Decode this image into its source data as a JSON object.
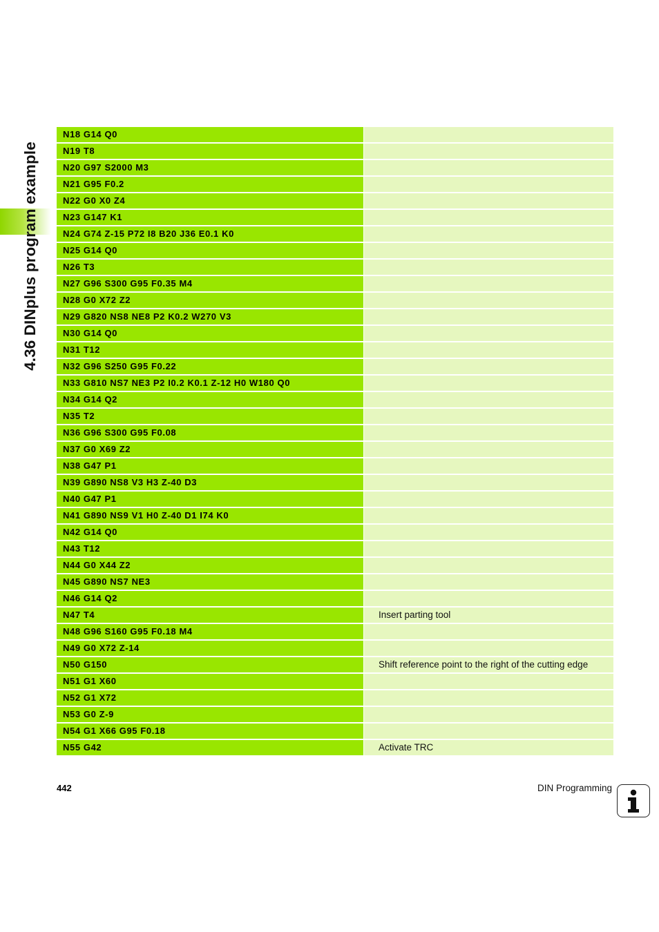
{
  "side_title": "4.36 DINplus program example",
  "footer": {
    "page_number": "442",
    "title": "DIN Programming"
  },
  "icons": {
    "info": "info-icon"
  },
  "colors": {
    "code_cell": "#99e600",
    "comment_cell": "#e6f7bf",
    "side_tab": "#8fd600"
  },
  "rows": [
    {
      "code": "N18 G14 Q0",
      "comment": ""
    },
    {
      "code": "N19 T8",
      "comment": ""
    },
    {
      "code": "N20 G97 S2000 M3",
      "comment": ""
    },
    {
      "code": "N21 G95 F0.2",
      "comment": ""
    },
    {
      "code": "N22 G0 X0 Z4",
      "comment": ""
    },
    {
      "code": "N23 G147 K1",
      "comment": ""
    },
    {
      "code": "N24 G74 Z-15 P72 I8 B20 J36 E0.1 K0",
      "comment": ""
    },
    {
      "code": "N25 G14 Q0",
      "comment": ""
    },
    {
      "code": "N26 T3",
      "comment": ""
    },
    {
      "code": "N27 G96 S300 G95 F0.35 M4",
      "comment": ""
    },
    {
      "code": "N28 G0 X72 Z2",
      "comment": ""
    },
    {
      "code": "N29 G820 NS8 NE8 P2 K0.2 W270 V3",
      "comment": ""
    },
    {
      "code": "N30 G14 Q0",
      "comment": ""
    },
    {
      "code": "N31 T12",
      "comment": ""
    },
    {
      "code": "N32 G96 S250 G95 F0.22",
      "comment": ""
    },
    {
      "code": "N33 G810 NS7 NE3 P2 I0.2 K0.1 Z-12 H0 W180 Q0",
      "comment": ""
    },
    {
      "code": "N34 G14 Q2",
      "comment": ""
    },
    {
      "code": "N35 T2",
      "comment": ""
    },
    {
      "code": "N36 G96 S300 G95 F0.08",
      "comment": ""
    },
    {
      "code": "N37 G0 X69 Z2",
      "comment": ""
    },
    {
      "code": "N38 G47 P1",
      "comment": ""
    },
    {
      "code": "N39 G890 NS8 V3 H3 Z-40 D3",
      "comment": ""
    },
    {
      "code": "N40 G47 P1",
      "comment": ""
    },
    {
      "code": "N41 G890 NS9 V1 H0 Z-40 D1 I74 K0",
      "comment": ""
    },
    {
      "code": "N42 G14 Q0",
      "comment": ""
    },
    {
      "code": "N43 T12",
      "comment": ""
    },
    {
      "code": "N44 G0 X44 Z2",
      "comment": ""
    },
    {
      "code": "N45 G890 NS7 NE3",
      "comment": ""
    },
    {
      "code": "N46 G14 Q2",
      "comment": ""
    },
    {
      "code": "N47 T4",
      "comment": "Insert parting tool"
    },
    {
      "code": "N48 G96 S160 G95 F0.18 M4",
      "comment": ""
    },
    {
      "code": "N49 G0 X72 Z-14",
      "comment": ""
    },
    {
      "code": "N50 G150",
      "comment": "Shift reference point to the right of the cutting edge"
    },
    {
      "code": "N51 G1 X60",
      "comment": ""
    },
    {
      "code": "N52 G1 X72",
      "comment": ""
    },
    {
      "code": "N53 G0 Z-9",
      "comment": ""
    },
    {
      "code": "N54 G1 X66 G95 F0.18",
      "comment": ""
    },
    {
      "code": "N55 G42",
      "comment": "Activate TRC"
    }
  ]
}
